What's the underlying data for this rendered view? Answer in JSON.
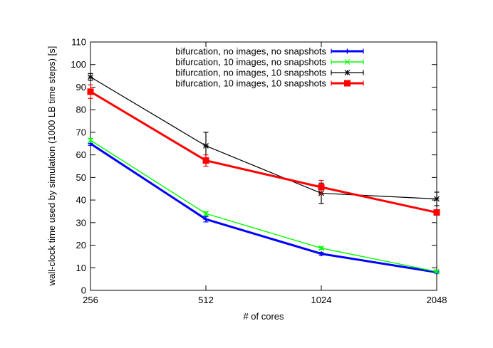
{
  "chart_data": {
    "type": "line",
    "title": "",
    "xlabel": "# of cores",
    "ylabel": "wall-clock time used by simulation (1000 LB time steps) [s]",
    "x": [
      256,
      512,
      1024,
      2048
    ],
    "x_tick_labels": [
      "256",
      "512",
      "1024",
      "2048"
    ],
    "x_scale": "log2",
    "ylim": [
      0,
      110
    ],
    "y_ticks": [
      0,
      10,
      20,
      30,
      40,
      50,
      60,
      70,
      80,
      90,
      100,
      110
    ],
    "grid": false,
    "legend_position": "top-right",
    "series": [
      {
        "name": "bifurcation, no images, no snapshots",
        "color": "#0000ff",
        "marker": "plus",
        "values": [
          65,
          31.5,
          16.2,
          8
        ],
        "err": [
          0.8,
          1.2,
          0.6,
          0.5
        ]
      },
      {
        "name": "bifurcation, 10 images, no snapshots",
        "color": "#00ff00",
        "marker": "cross",
        "values": [
          66.5,
          34,
          18.7,
          8.3
        ],
        "err": [
          0.8,
          0.8,
          0.6,
          0.5
        ]
      },
      {
        "name": "bifurcation, no images, 10 snapshots",
        "color": "#000000",
        "marker": "star",
        "values": [
          94.5,
          64,
          43,
          40.5
        ],
        "err": [
          1.5,
          6,
          4.5,
          3
        ]
      },
      {
        "name": "bifurcation, 10 images, 10 snapshots",
        "color": "#ff0000",
        "marker": "square",
        "values": [
          88,
          57.5,
          45.7,
          34.5
        ],
        "err": [
          3,
          2.5,
          3,
          1
        ]
      }
    ]
  }
}
